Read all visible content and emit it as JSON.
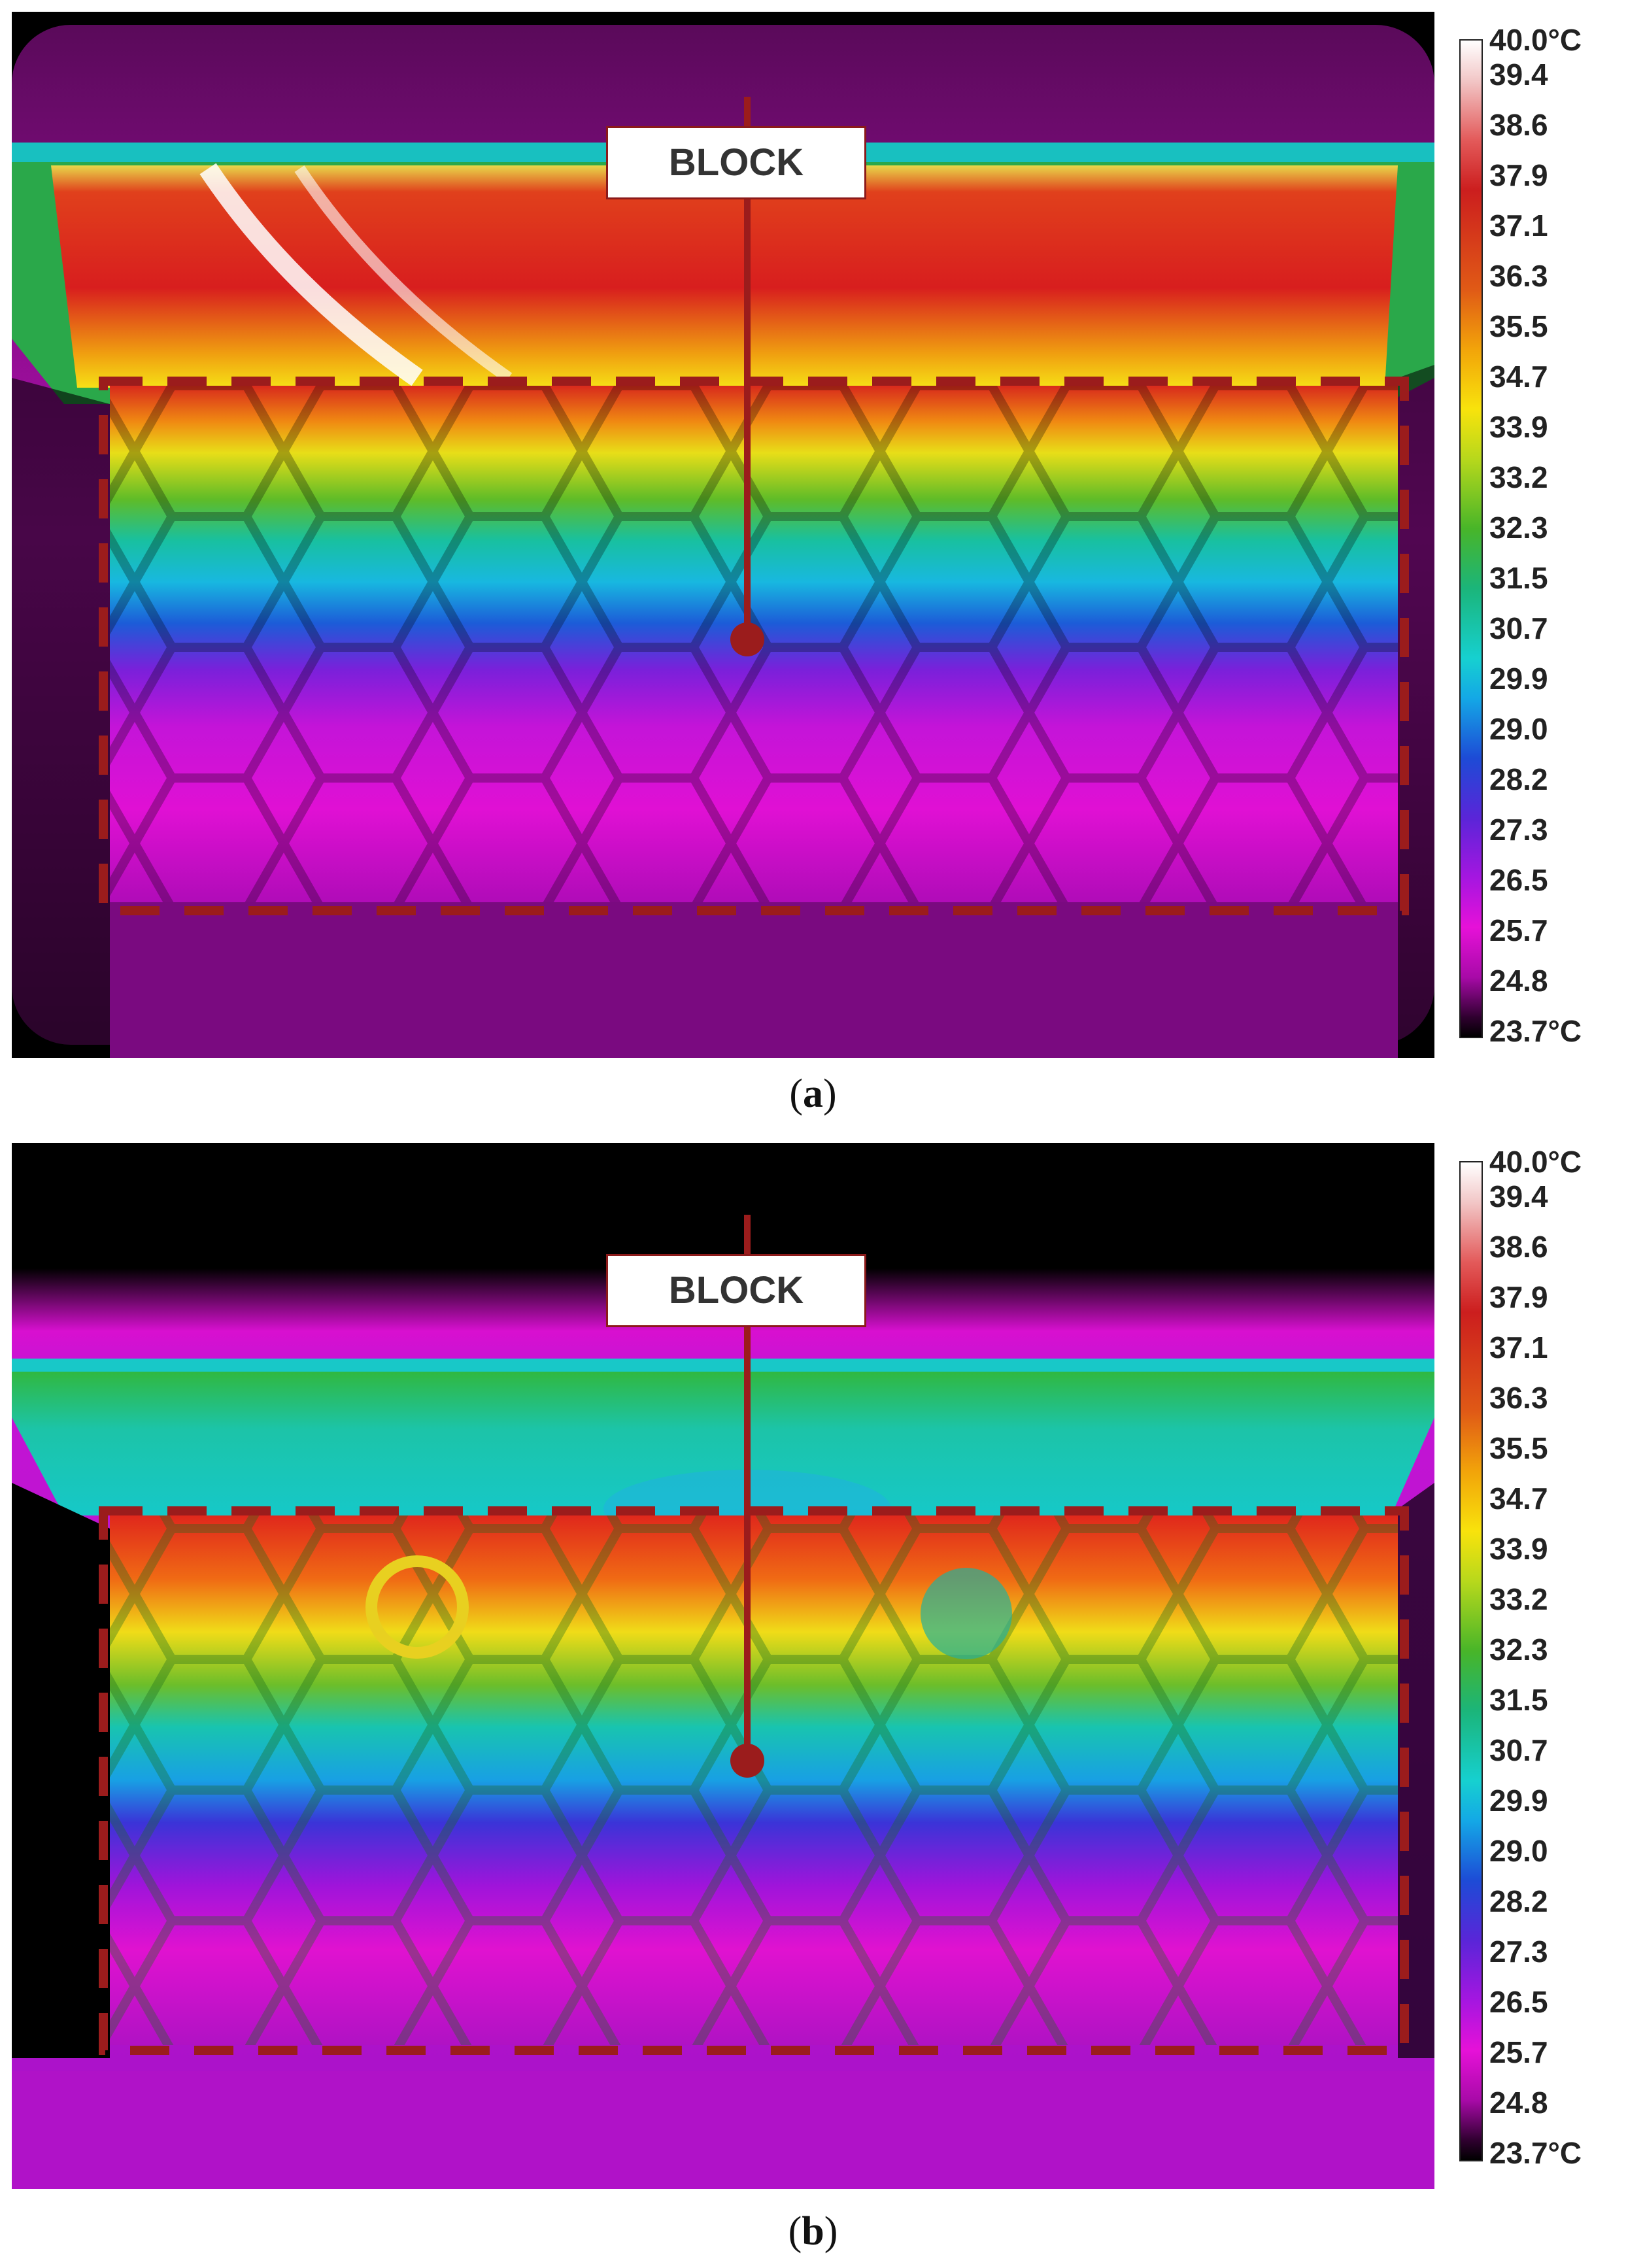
{
  "figure": {
    "panels": [
      {
        "id": "a",
        "caption_letter": "a",
        "block_label": "BLOCK",
        "scale_ticks": [
          "40.0°C",
          "39.4",
          "38.6",
          "37.9",
          "37.1",
          "36.3",
          "35.5",
          "34.7",
          "33.9",
          "33.2",
          "32.3",
          "31.5",
          "30.7",
          "29.9",
          "29.0",
          "28.2",
          "27.3",
          "26.5",
          "25.7",
          "24.8",
          "23.7°C"
        ]
      },
      {
        "id": "b",
        "caption_letter": "b",
        "block_label": "BLOCK",
        "scale_ticks": [
          "40.0°C",
          "39.4",
          "38.6",
          "37.9",
          "37.1",
          "36.3",
          "35.5",
          "34.7",
          "33.9",
          "33.2",
          "32.3",
          "31.5",
          "30.7",
          "29.9",
          "29.0",
          "28.2",
          "27.3",
          "26.5",
          "25.7",
          "24.8",
          "23.7°C"
        ]
      }
    ],
    "colors": {
      "annotation": "#9b1c1c",
      "hot": "#d42020",
      "warm": "#f5e31a",
      "mid": "#1dbfbf",
      "cool": "#1e3fd6",
      "cold": "#b012c8",
      "background": "#000000"
    }
  }
}
